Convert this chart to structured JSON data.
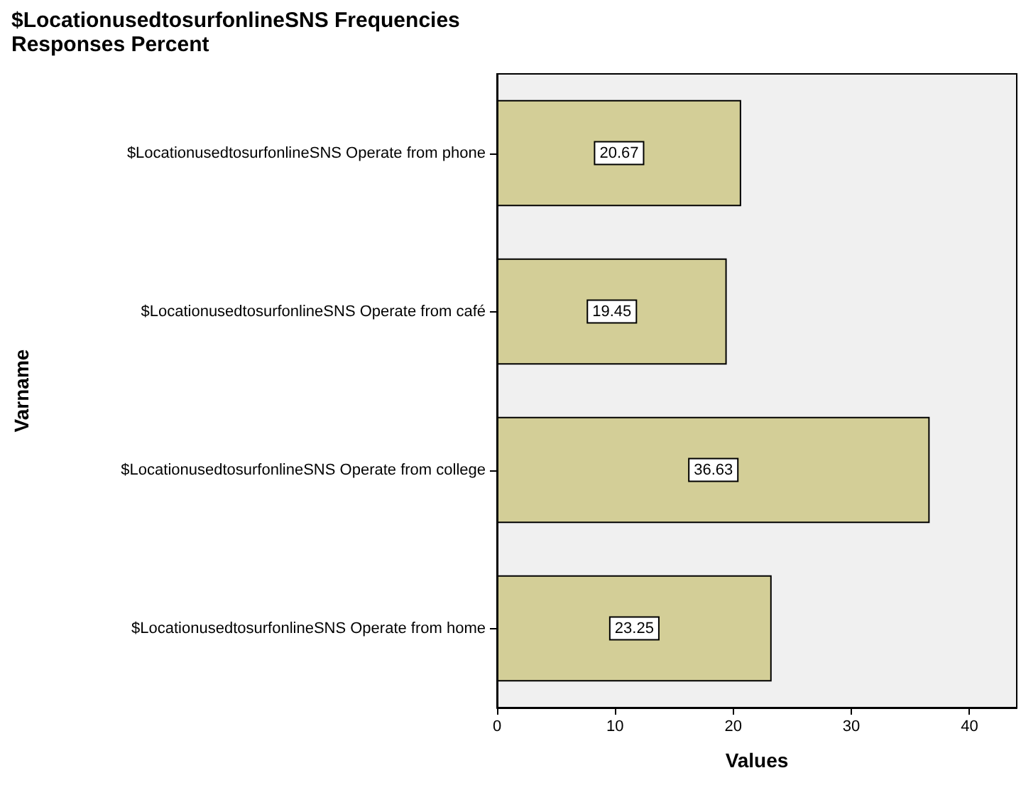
{
  "chart_data": {
    "type": "bar",
    "orientation": "horizontal",
    "title": "$LocationusedtosurfonlineSNS Frequencies",
    "subtitle": "Responses Percent",
    "xlabel": "Values",
    "ylabel": "Varname",
    "categories": [
      "$LocationusedtosurfonlineSNS Operate from phone",
      "$LocationusedtosurfonlineSNS Operate from café",
      "$LocationusedtosurfonlineSNS Operate from college",
      "$LocationusedtosurfonlineSNS Operate from home"
    ],
    "values": [
      20.67,
      19.45,
      36.63,
      23.25
    ],
    "color": "#d3ce97",
    "xlim": [
      0,
      44
    ],
    "xticks": [
      0,
      10,
      20,
      30,
      40
    ],
    "grid": false,
    "data_labels": true
  }
}
